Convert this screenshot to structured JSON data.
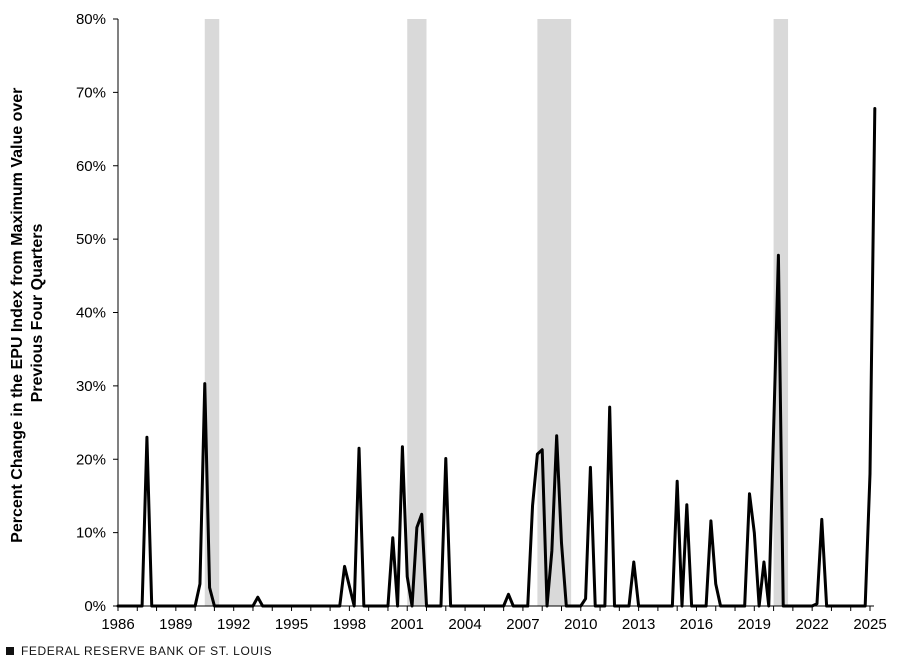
{
  "chart_data": {
    "type": "line",
    "title": "",
    "xlabel": "",
    "ylabel_lines": [
      "Percent Change in the EPU Index from Maximum Value over",
      "Previous Four Quarters"
    ],
    "x_range": [
      1986,
      2025.25
    ],
    "y_range": [
      0,
      80
    ],
    "x_ticks": [
      "1986",
      "1989",
      "1992",
      "1995",
      "1998",
      "2001",
      "2004",
      "2007",
      "2010",
      "2013",
      "2016",
      "2019",
      "2022",
      "2025"
    ],
    "y_ticks": [
      "0%",
      "10%",
      "20%",
      "30%",
      "40%",
      "50%",
      "60%",
      "70%",
      "80%"
    ],
    "grid": false,
    "line_color": "#000000",
    "recession_color": "#d9d9d9",
    "recessions": [
      {
        "start": 1990.5,
        "end": 1991.25
      },
      {
        "start": 2001.0,
        "end": 2002.0
      },
      {
        "start": 2007.75,
        "end": 2009.5
      },
      {
        "start": 2020.0,
        "end": 2020.75
      }
    ],
    "series": [
      {
        "points": [
          [
            1986.0,
            0
          ],
          [
            1987.25,
            0
          ],
          [
            1987.5,
            23
          ],
          [
            1987.75,
            0
          ],
          [
            1988.0,
            0
          ],
          [
            1990.0,
            0
          ],
          [
            1990.25,
            3
          ],
          [
            1990.5,
            30.3
          ],
          [
            1990.75,
            2.5
          ],
          [
            1991.0,
            0
          ],
          [
            1993.0,
            0
          ],
          [
            1993.25,
            1.2
          ],
          [
            1993.5,
            0
          ],
          [
            1997.5,
            0
          ],
          [
            1997.75,
            5.4
          ],
          [
            1998.25,
            0
          ],
          [
            1998.5,
            21.5
          ],
          [
            1998.75,
            0
          ],
          [
            2000.0,
            0
          ],
          [
            2000.25,
            9.3
          ],
          [
            2000.5,
            0
          ],
          [
            2000.75,
            21.7
          ],
          [
            2001.0,
            4
          ],
          [
            2001.25,
            0
          ],
          [
            2001.5,
            10.7
          ],
          [
            2001.75,
            12.5
          ],
          [
            2002.0,
            0
          ],
          [
            2002.75,
            0
          ],
          [
            2003.0,
            20.1
          ],
          [
            2003.25,
            0
          ],
          [
            2006.0,
            0
          ],
          [
            2006.25,
            1.6
          ],
          [
            2006.5,
            0
          ],
          [
            2007.25,
            0
          ],
          [
            2007.5,
            13.7
          ],
          [
            2007.75,
            20.7
          ],
          [
            2008.0,
            21.3
          ],
          [
            2008.25,
            0
          ],
          [
            2008.5,
            7.5
          ],
          [
            2008.75,
            23.2
          ],
          [
            2009.0,
            8.6
          ],
          [
            2009.25,
            0
          ],
          [
            2010.0,
            0
          ],
          [
            2010.25,
            1
          ],
          [
            2010.5,
            18.9
          ],
          [
            2010.75,
            0
          ],
          [
            2011.25,
            0
          ],
          [
            2011.5,
            27.1
          ],
          [
            2011.75,
            0
          ],
          [
            2012.5,
            0
          ],
          [
            2012.75,
            6
          ],
          [
            2013.0,
            0
          ],
          [
            2014.75,
            0
          ],
          [
            2015.0,
            17
          ],
          [
            2015.25,
            0
          ],
          [
            2015.5,
            13.8
          ],
          [
            2015.75,
            0
          ],
          [
            2016.5,
            0
          ],
          [
            2016.75,
            11.6
          ],
          [
            2017.0,
            3
          ],
          [
            2017.25,
            0
          ],
          [
            2018.5,
            0
          ],
          [
            2018.75,
            15.3
          ],
          [
            2019.0,
            10
          ],
          [
            2019.25,
            0
          ],
          [
            2019.5,
            6
          ],
          [
            2019.75,
            0
          ],
          [
            2020.25,
            47.8
          ],
          [
            2020.5,
            0
          ],
          [
            2022.0,
            0
          ],
          [
            2022.25,
            0.3
          ],
          [
            2022.5,
            11.8
          ],
          [
            2022.75,
            0
          ],
          [
            2024.75,
            0
          ],
          [
            2025.0,
            18
          ],
          [
            2025.25,
            67.8
          ]
        ]
      }
    ]
  },
  "footer": {
    "label": "FEDERAL RESERVE BANK OF ST. LOUIS"
  }
}
